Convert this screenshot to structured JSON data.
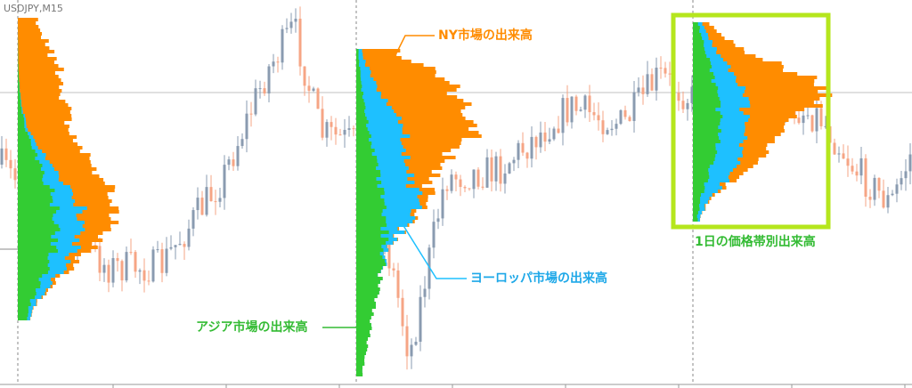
{
  "symbol": "USDJPY,M15",
  "annotations": {
    "ny": "NY市場の出来高",
    "europe": "ヨーロッパ市場の出来高",
    "asia": "アジア市場の出来高",
    "daily": "1日の価格帯別出来高"
  }
}
